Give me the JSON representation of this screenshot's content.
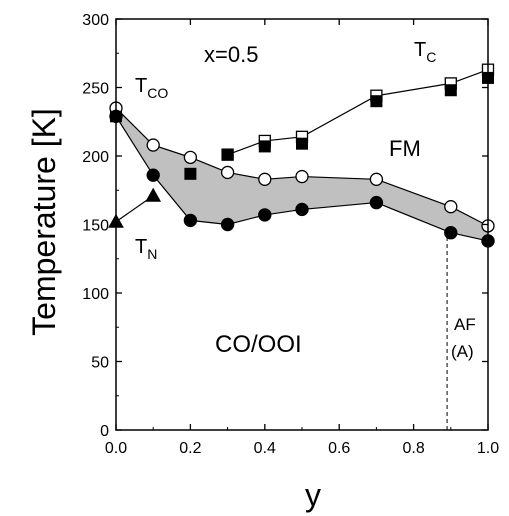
{
  "chart_data": {
    "type": "scatter",
    "xlabel": "y",
    "ylabel": "Temperature [K]",
    "xlim": [
      0.0,
      1.0
    ],
    "ylim": [
      0,
      300
    ],
    "x_ticks": [
      0.0,
      0.2,
      0.4,
      0.6,
      0.8,
      1.0
    ],
    "x_tick_labels": [
      "0.0",
      "0.2",
      "0.4",
      "0.6",
      "0.8",
      "1.0"
    ],
    "y_ticks": [
      0,
      50,
      100,
      150,
      200,
      250,
      300
    ],
    "y_tick_labels": [
      "0",
      "50",
      "100",
      "150",
      "200",
      "250",
      "300"
    ],
    "grid": false,
    "shaded_band": {
      "between": [
        "T_CO_open",
        "T_CO_filled"
      ],
      "color": "#c0c0c0"
    },
    "series": [
      {
        "key": "T_C_open",
        "marker": "open-square",
        "connected": true,
        "x": [
          0.3,
          0.4,
          0.5,
          0.7,
          0.9,
          1.0
        ],
        "y": [
          201,
          211,
          214,
          244,
          253,
          263
        ]
      },
      {
        "key": "T_C_filled",
        "marker": "filled-square",
        "connected": false,
        "x": [
          0.0,
          0.2,
          0.3,
          0.4,
          0.5,
          0.7,
          0.9,
          1.0
        ],
        "y": [
          229,
          187,
          201,
          207,
          209,
          240,
          248,
          257
        ]
      },
      {
        "key": "T_CO_open",
        "marker": "open-circle",
        "connected": true,
        "x": [
          0.0,
          0.1,
          0.2,
          0.3,
          0.4,
          0.5,
          0.7,
          0.9,
          1.0
        ],
        "y": [
          235,
          208,
          199,
          188,
          183,
          185,
          183,
          163,
          149
        ]
      },
      {
        "key": "T_CO_filled",
        "marker": "filled-circle",
        "connected": true,
        "x": [
          0.0,
          0.1,
          0.2,
          0.3,
          0.4,
          0.5,
          0.7,
          0.9,
          1.0
        ],
        "y": [
          229,
          186,
          153,
          150,
          157,
          161,
          166,
          144,
          138
        ]
      },
      {
        "key": "T_N",
        "marker": "filled-triangle",
        "connected": true,
        "x": [
          0.0,
          0.1
        ],
        "y": [
          152,
          171
        ]
      }
    ],
    "vertical_line": {
      "x": 0.89,
      "y_from": 0,
      "y_to": 144,
      "style": "dashed"
    },
    "annotations": {
      "composition": "x=0.5",
      "tco_main": "T",
      "tco_sub": "CO",
      "tc_main": "T",
      "tc_sub": "C",
      "tn_main": "T",
      "tn_sub": "N",
      "fm": "FM",
      "coooi": "CO/OOI",
      "af": "AF",
      "af_a": "(A)"
    }
  }
}
